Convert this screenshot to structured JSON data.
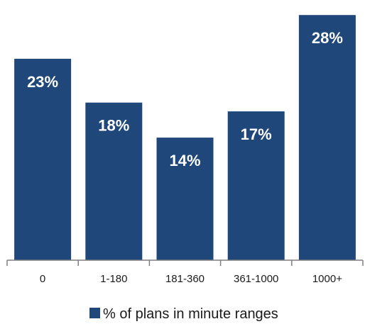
{
  "chart_data": {
    "type": "bar",
    "categories": [
      "0",
      "1-180",
      "181-360",
      "361-1000",
      "1000+"
    ],
    "values": [
      23,
      18,
      14,
      17,
      28
    ],
    "data_labels": [
      "23%",
      "18%",
      "14%",
      "17%",
      "28%"
    ],
    "title": "",
    "xlabel": "",
    "ylabel": "",
    "ylim": [
      0,
      30
    ],
    "grid": false,
    "legend_position": "bottom",
    "series": [
      {
        "name": "% of plans in minute ranges",
        "values": [
          23,
          18,
          14,
          17,
          28
        ],
        "color": "#1f477a"
      }
    ]
  }
}
